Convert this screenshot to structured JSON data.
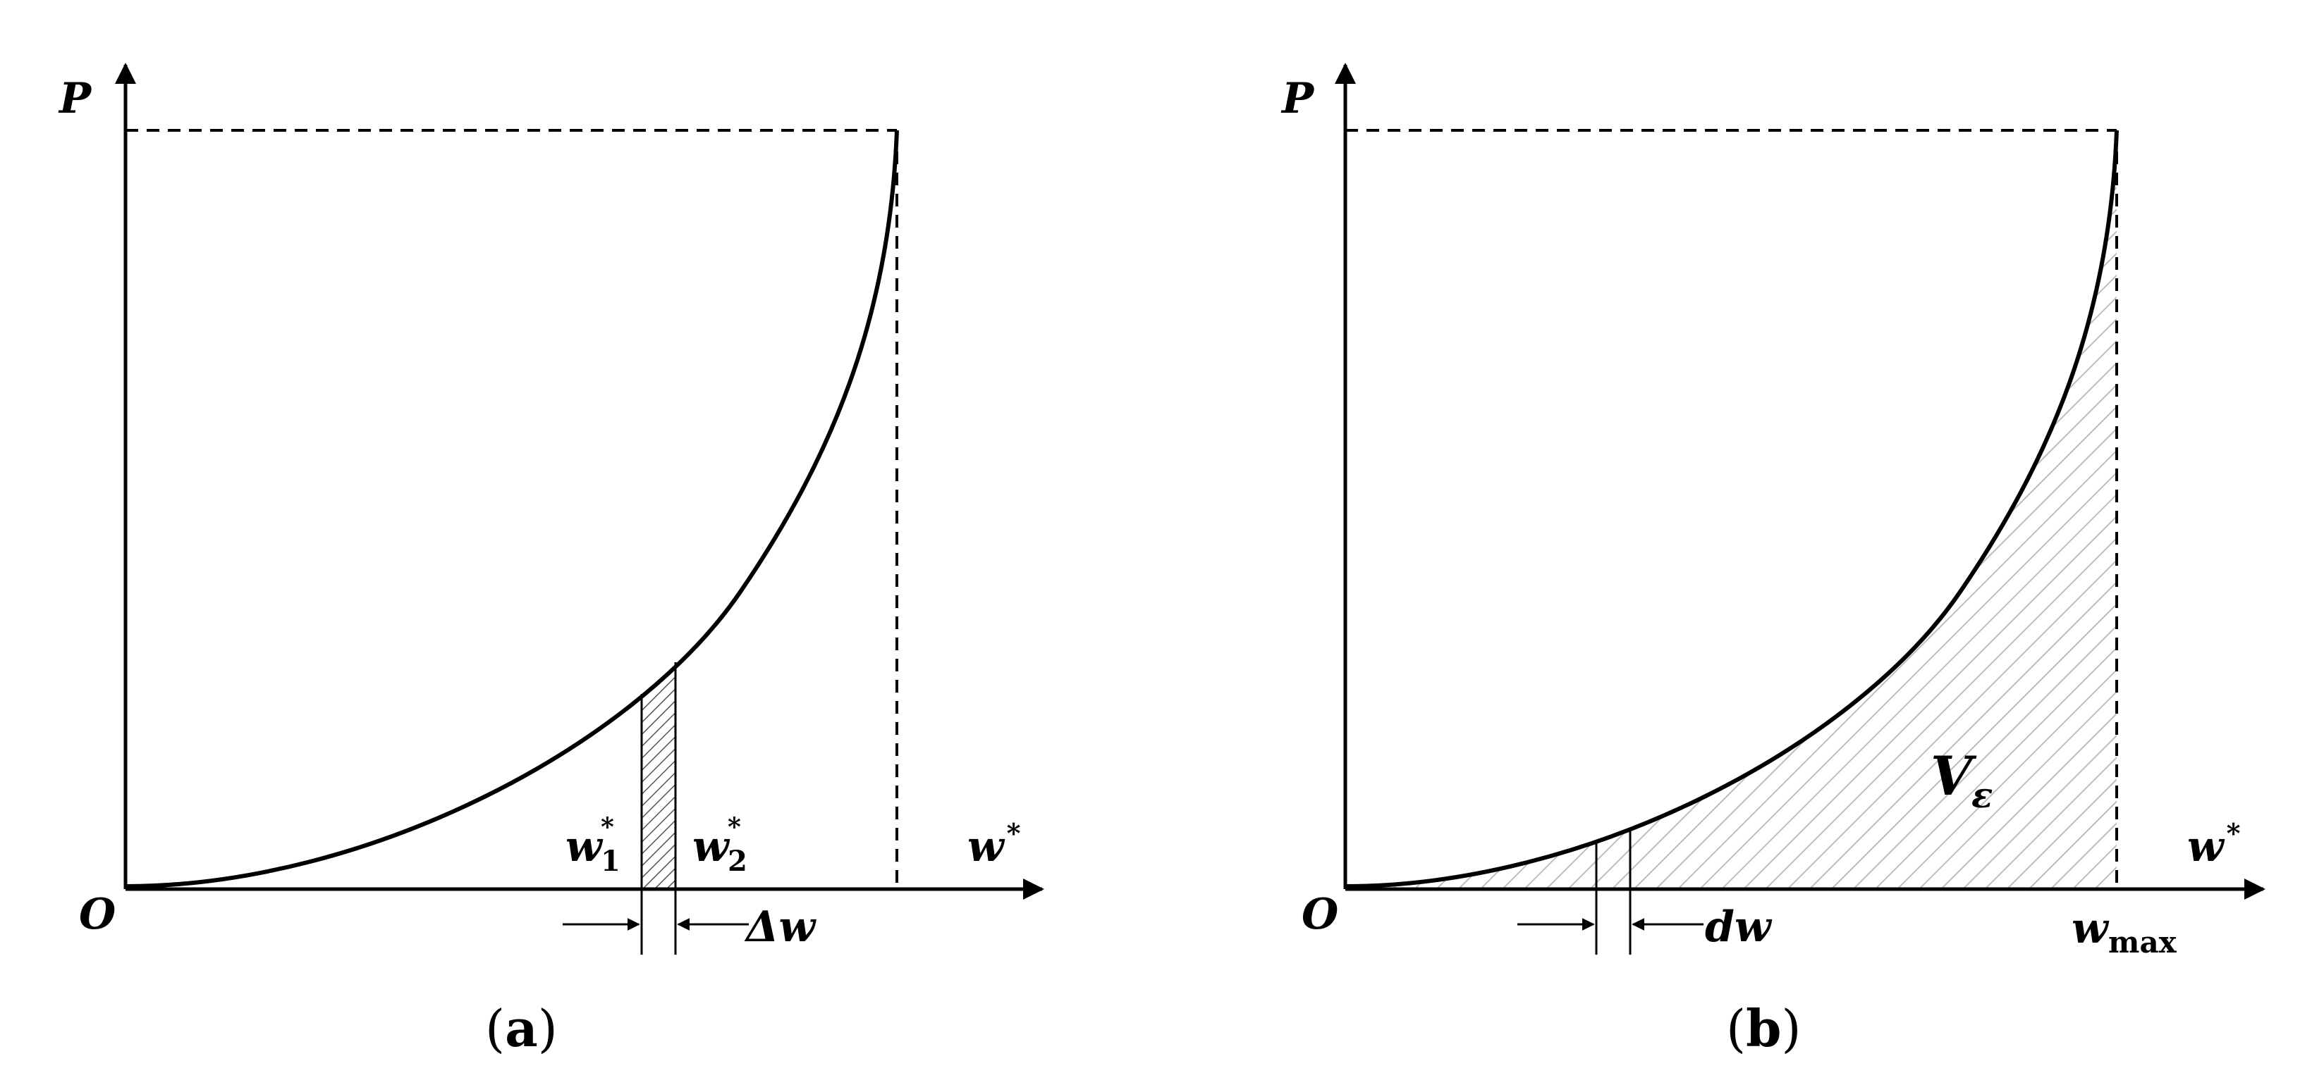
{
  "panel_a": {
    "axis_y": "P",
    "axis_x_base": "w",
    "axis_x_sup": "*",
    "origin": "O",
    "w1_base": "w",
    "w1_sup": "*",
    "w1_sub": "1",
    "w2_base": "w",
    "w2_sup": "*",
    "w2_sub": "2",
    "delta_label": "Δw",
    "caption_open": "(",
    "caption_letter": "a",
    "caption_close": ")"
  },
  "panel_b": {
    "axis_y": "P",
    "axis_x_base": "w",
    "axis_x_sup": "*",
    "origin": "O",
    "area_base": "V",
    "area_sub": "ε",
    "dw_label": "dw",
    "wmax_base": "w",
    "wmax_sub": "max",
    "caption_open": "(",
    "caption_letter": "b",
    "caption_close": ")"
  },
  "colors": {
    "line": "#000000",
    "hatch_a": "#555555",
    "hatch_b": "#bbbbbb"
  }
}
